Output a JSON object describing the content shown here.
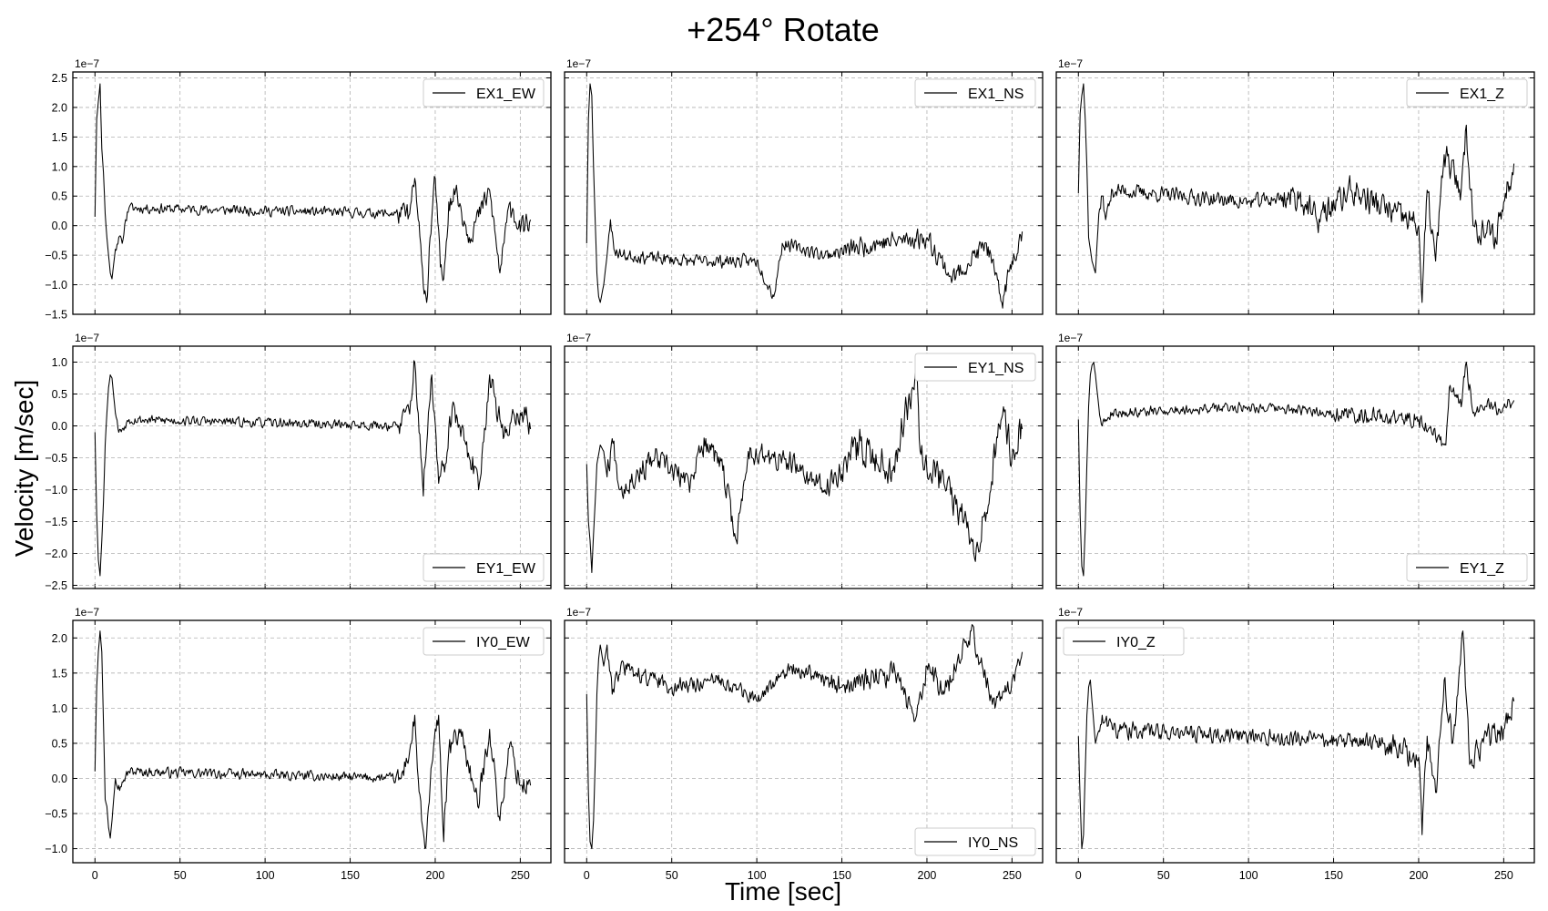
{
  "figure": {
    "title": "+254° Rotate",
    "xlabel": "Time [sec]",
    "ylabel": "Velocity [m/sec]",
    "offset_text": "1e−7",
    "colors": {
      "line": "#000000",
      "grid": "#b0b0b0",
      "background": "#ffffff"
    }
  },
  "chart_data": [
    {
      "type": "line",
      "title": "",
      "series": [
        {
          "name": "EX1_EW"
        }
      ],
      "legend": "upper-right",
      "xlim": [
        -13,
        268
      ],
      "ylim": [
        -1.5,
        2.6
      ],
      "xticks": [],
      "yticks": [
        -1.5,
        -1.0,
        -0.5,
        0.0,
        0.5,
        1.0,
        1.5,
        2.0,
        2.5
      ],
      "yticklabels": [
        "−1.5",
        "−1.0",
        "−0.5",
        "0.0",
        "0.5",
        "1.0",
        "1.5",
        "2.0",
        "2.5"
      ],
      "grid": true,
      "key_points": [
        [
          0,
          0.15
        ],
        [
          1,
          1.8
        ],
        [
          2,
          2.1
        ],
        [
          3,
          2.4
        ],
        [
          4,
          1.3
        ],
        [
          5,
          0.9
        ],
        [
          6,
          0.2
        ],
        [
          7,
          -0.2
        ],
        [
          8,
          -0.5
        ],
        [
          9,
          -0.8
        ],
        [
          10,
          -0.9
        ],
        [
          12,
          -0.4
        ],
        [
          14,
          -0.2
        ],
        [
          16,
          -0.3
        ],
        [
          18,
          0.1
        ],
        [
          20,
          0.3
        ],
        [
          185,
          0.2
        ],
        [
          188,
          0.8
        ],
        [
          190,
          0.1
        ],
        [
          192,
          -0.6
        ],
        [
          194,
          -1.1
        ],
        [
          195,
          -1.3
        ],
        [
          197,
          -0.2
        ],
        [
          200,
          0.8
        ],
        [
          203,
          -0.7
        ],
        [
          205,
          -0.9
        ],
        [
          208,
          0.4
        ],
        [
          212,
          0.6
        ],
        [
          220,
          -0.2
        ],
        [
          232,
          0.6
        ],
        [
          238,
          -0.8
        ],
        [
          244,
          0.4
        ],
        [
          250,
          -0.1
        ],
        [
          256,
          0.1
        ]
      ],
      "noise": {
        "level": 0.16,
        "late_level": 0.35,
        "late_start": 178,
        "seed": 11
      }
    },
    {
      "type": "line",
      "title": "",
      "series": [
        {
          "name": "EX1_NS"
        }
      ],
      "legend": "upper-right",
      "xlim": [
        -13,
        268
      ],
      "ylim": [
        -1.5,
        2.6
      ],
      "xticks": [],
      "yticks": [],
      "grid": true,
      "key_points": [
        [
          0,
          -0.3
        ],
        [
          1,
          1.8
        ],
        [
          2,
          2.4
        ],
        [
          3,
          2.2
        ],
        [
          4,
          1.0
        ],
        [
          5,
          0.1
        ],
        [
          6,
          -0.8
        ],
        [
          7,
          -1.2
        ],
        [
          8,
          -1.3
        ],
        [
          10,
          -1.0
        ],
        [
          12,
          -0.5
        ],
        [
          14,
          0.1
        ],
        [
          16,
          -0.4
        ],
        [
          20,
          -0.5
        ],
        [
          60,
          -0.6
        ],
        [
          100,
          -0.6
        ],
        [
          110,
          -1.2
        ],
        [
          115,
          -0.3
        ],
        [
          140,
          -0.5
        ],
        [
          170,
          -0.3
        ],
        [
          200,
          -0.2
        ],
        [
          215,
          -0.9
        ],
        [
          235,
          -0.3
        ],
        [
          244,
          -1.3
        ],
        [
          250,
          -0.6
        ],
        [
          256,
          -0.1
        ]
      ],
      "noise": {
        "level": 0.2,
        "late_level": 0.32,
        "late_start": 150,
        "seed": 23
      }
    },
    {
      "type": "line",
      "title": "",
      "series": [
        {
          "name": "EX1_Z"
        }
      ],
      "legend": "upper-right",
      "xlim": [
        -13,
        268
      ],
      "ylim": [
        -1.5,
        2.6
      ],
      "xticks": [],
      "yticks": [],
      "grid": true,
      "key_points": [
        [
          0,
          0.55
        ],
        [
          1,
          1.9
        ],
        [
          2,
          2.2
        ],
        [
          3,
          2.4
        ],
        [
          4,
          1.8
        ],
        [
          5,
          1.0
        ],
        [
          6,
          -0.2
        ],
        [
          8,
          -0.6
        ],
        [
          10,
          -0.8
        ],
        [
          12,
          0.2
        ],
        [
          14,
          0.5
        ],
        [
          16,
          0.1
        ],
        [
          20,
          0.6
        ],
        [
          100,
          0.4
        ],
        [
          130,
          0.5
        ],
        [
          140,
          0.1
        ],
        [
          160,
          0.6
        ],
        [
          200,
          0.0
        ],
        [
          202,
          -1.3
        ],
        [
          205,
          0.6
        ],
        [
          210,
          -0.6
        ],
        [
          215,
          1.2
        ],
        [
          225,
          0.6
        ],
        [
          228,
          1.7
        ],
        [
          232,
          0.0
        ],
        [
          245,
          -0.2
        ],
        [
          250,
          0.4
        ],
        [
          256,
          1.05
        ]
      ],
      "noise": {
        "level": 0.24,
        "late_level": 0.45,
        "late_start": 120,
        "seed": 37
      }
    },
    {
      "type": "line",
      "title": "",
      "series": [
        {
          "name": "EY1_EW"
        }
      ],
      "legend": "lower-right",
      "xlim": [
        -13,
        268
      ],
      "ylim": [
        -2.55,
        1.25
      ],
      "xticks": [],
      "yticks": [
        -2.5,
        -2.0,
        -1.5,
        -1.0,
        -0.5,
        0.0,
        0.5,
        1.0
      ],
      "yticklabels": [
        "−2.5",
        "−2.0",
        "−1.5",
        "−1.0",
        "−0.5",
        "0.0",
        "0.5",
        "1.0"
      ],
      "grid": true,
      "key_points": [
        [
          0,
          -0.1
        ],
        [
          1,
          -1.4
        ],
        [
          2,
          -2.1
        ],
        [
          3,
          -2.35
        ],
        [
          4,
          -1.8
        ],
        [
          5,
          -1.2
        ],
        [
          6,
          -0.3
        ],
        [
          7,
          0.2
        ],
        [
          8,
          0.6
        ],
        [
          9,
          0.8
        ],
        [
          10,
          0.75
        ],
        [
          12,
          0.2
        ],
        [
          14,
          -0.1
        ],
        [
          16,
          -0.05
        ],
        [
          20,
          0.1
        ],
        [
          180,
          0.0
        ],
        [
          186,
          0.4
        ],
        [
          188,
          1.0
        ],
        [
          190,
          0.2
        ],
        [
          192,
          -0.6
        ],
        [
          193,
          -1.1
        ],
        [
          195,
          -0.3
        ],
        [
          198,
          0.8
        ],
        [
          202,
          -0.9
        ],
        [
          206,
          -0.6
        ],
        [
          210,
          0.3
        ],
        [
          220,
          -0.5
        ],
        [
          226,
          -0.9
        ],
        [
          232,
          0.8
        ],
        [
          240,
          -0.2
        ],
        [
          246,
          0.2
        ],
        [
          254,
          0.15
        ],
        [
          256,
          -0.05
        ]
      ],
      "noise": {
        "level": 0.14,
        "late_level": 0.38,
        "late_start": 178,
        "seed": 53
      }
    },
    {
      "type": "line",
      "title": "",
      "series": [
        {
          "name": "EY1_NS"
        }
      ],
      "legend": "upper-right",
      "xlim": [
        -13,
        268
      ],
      "ylim": [
        -2.55,
        1.25
      ],
      "xticks": [],
      "yticks": [],
      "grid": true,
      "key_points": [
        [
          0,
          -0.6
        ],
        [
          1,
          -1.5
        ],
        [
          2,
          -1.8
        ],
        [
          3,
          -2.3
        ],
        [
          4,
          -1.7
        ],
        [
          5,
          -1.2
        ],
        [
          6,
          -0.6
        ],
        [
          8,
          -0.3
        ],
        [
          10,
          -0.4
        ],
        [
          12,
          -0.8
        ],
        [
          15,
          -0.2
        ],
        [
          20,
          -1.0
        ],
        [
          40,
          -0.5
        ],
        [
          60,
          -0.9
        ],
        [
          70,
          -0.2
        ],
        [
          80,
          -0.7
        ],
        [
          88,
          -1.8
        ],
        [
          95,
          -0.4
        ],
        [
          120,
          -0.6
        ],
        [
          140,
          -1.0
        ],
        [
          160,
          -0.3
        ],
        [
          180,
          -0.7
        ],
        [
          194,
          1.0
        ],
        [
          196,
          -0.4
        ],
        [
          210,
          -0.9
        ],
        [
          230,
          -1.9
        ],
        [
          240,
          -0.5
        ],
        [
          245,
          0.3
        ],
        [
          250,
          -0.5
        ],
        [
          256,
          -0.05
        ]
      ],
      "noise": {
        "level": 0.35,
        "late_level": 0.5,
        "late_start": 150,
        "seed": 67
      }
    },
    {
      "type": "line",
      "title": "",
      "series": [
        {
          "name": "EY1_Z"
        }
      ],
      "legend": "lower-right",
      "xlim": [
        -13,
        268
      ],
      "ylim": [
        -2.55,
        1.25
      ],
      "xticks": [],
      "yticks": [],
      "grid": true,
      "key_points": [
        [
          0,
          0.1
        ],
        [
          1,
          -1.4
        ],
        [
          2,
          -2.2
        ],
        [
          3,
          -2.35
        ],
        [
          4,
          -1.6
        ],
        [
          5,
          -0.6
        ],
        [
          6,
          0.3
        ],
        [
          7,
          0.8
        ],
        [
          8,
          0.95
        ],
        [
          9,
          1.0
        ],
        [
          10,
          0.8
        ],
        [
          12,
          0.3
        ],
        [
          14,
          0.0
        ],
        [
          16,
          0.1
        ],
        [
          20,
          0.2
        ],
        [
          100,
          0.3
        ],
        [
          200,
          0.1
        ],
        [
          216,
          -0.3
        ],
        [
          218,
          0.6
        ],
        [
          225,
          0.3
        ],
        [
          228,
          1.0
        ],
        [
          232,
          0.2
        ],
        [
          240,
          0.3
        ],
        [
          250,
          0.3
        ],
        [
          256,
          0.4
        ]
      ],
      "noise": {
        "level": 0.15,
        "late_level": 0.24,
        "late_start": 150,
        "seed": 79
      }
    },
    {
      "type": "line",
      "title": "",
      "series": [
        {
          "name": "IY0_EW"
        }
      ],
      "legend": "upper-right",
      "xlim": [
        -13,
        268
      ],
      "ylim": [
        -1.2,
        2.25
      ],
      "xticks": [
        0,
        50,
        100,
        150,
        200,
        250
      ],
      "yticks": [
        -1.0,
        -0.5,
        0.0,
        0.5,
        1.0,
        1.5,
        2.0
      ],
      "yticklabels": [
        "−1.0",
        "−0.5",
        "0.0",
        "0.5",
        "1.0",
        "1.5",
        "2.0"
      ],
      "grid": true,
      "key_points": [
        [
          0,
          0.1
        ],
        [
          1,
          1.3
        ],
        [
          2,
          1.8
        ],
        [
          3,
          2.1
        ],
        [
          4,
          1.8
        ],
        [
          5,
          0.8
        ],
        [
          6,
          -0.3
        ],
        [
          7,
          -0.4
        ],
        [
          8,
          -0.7
        ],
        [
          9,
          -0.85
        ],
        [
          10,
          -0.6
        ],
        [
          12,
          0.0
        ],
        [
          14,
          -0.1
        ],
        [
          16,
          -0.05
        ],
        [
          20,
          0.1
        ],
        [
          180,
          0.0
        ],
        [
          186,
          0.5
        ],
        [
          188,
          0.9
        ],
        [
          190,
          0.0
        ],
        [
          192,
          -0.6
        ],
        [
          194,
          -1.0
        ],
        [
          195,
          -0.8
        ],
        [
          198,
          0.2
        ],
        [
          202,
          0.9
        ],
        [
          205,
          -0.9
        ],
        [
          208,
          0.4
        ],
        [
          215,
          0.7
        ],
        [
          225,
          -0.4
        ],
        [
          232,
          0.7
        ],
        [
          238,
          -0.6
        ],
        [
          244,
          0.5
        ],
        [
          250,
          -0.1
        ],
        [
          256,
          -0.1
        ]
      ],
      "noise": {
        "level": 0.13,
        "late_level": 0.3,
        "late_start": 178,
        "seed": 97
      }
    },
    {
      "type": "line",
      "title": "",
      "series": [
        {
          "name": "IY0_NS"
        }
      ],
      "legend": "lower-right",
      "xlim": [
        -13,
        268
      ],
      "ylim": [
        -1.2,
        2.25
      ],
      "xticks": [
        0,
        50,
        100,
        150,
        200,
        250
      ],
      "yticks": [],
      "grid": true,
      "key_points": [
        [
          0,
          1.2
        ],
        [
          1,
          -0.2
        ],
        [
          2,
          -0.9
        ],
        [
          3,
          -1.0
        ],
        [
          4,
          -0.6
        ],
        [
          5,
          0.2
        ],
        [
          6,
          1.2
        ],
        [
          7,
          1.7
        ],
        [
          8,
          1.9
        ],
        [
          10,
          1.6
        ],
        [
          12,
          1.9
        ],
        [
          15,
          1.2
        ],
        [
          20,
          1.6
        ],
        [
          50,
          1.3
        ],
        [
          80,
          1.4
        ],
        [
          100,
          1.1
        ],
        [
          120,
          1.6
        ],
        [
          150,
          1.3
        ],
        [
          180,
          1.5
        ],
        [
          194,
          0.9
        ],
        [
          200,
          1.6
        ],
        [
          210,
          1.2
        ],
        [
          226,
          2.1
        ],
        [
          240,
          1.0
        ],
        [
          250,
          1.4
        ],
        [
          256,
          1.8
        ]
      ],
      "noise": {
        "level": 0.22,
        "late_level": 0.3,
        "late_start": 140,
        "seed": 113
      }
    },
    {
      "type": "line",
      "title": "",
      "series": [
        {
          "name": "IY0_Z"
        }
      ],
      "legend": "upper-left",
      "xlim": [
        -13,
        268
      ],
      "ylim": [
        -1.2,
        2.25
      ],
      "xticks": [
        0,
        50,
        100,
        150,
        200,
        250
      ],
      "yticks": [],
      "grid": true,
      "key_points": [
        [
          0,
          0.6
        ],
        [
          1,
          -0.3
        ],
        [
          2,
          -1.0
        ],
        [
          3,
          -0.8
        ],
        [
          4,
          0.1
        ],
        [
          5,
          0.9
        ],
        [
          6,
          1.3
        ],
        [
          7,
          1.4
        ],
        [
          8,
          1.1
        ],
        [
          10,
          0.5
        ],
        [
          14,
          0.9
        ],
        [
          20,
          0.7
        ],
        [
          100,
          0.6
        ],
        [
          180,
          0.5
        ],
        [
          200,
          0.3
        ],
        [
          202,
          -0.8
        ],
        [
          205,
          0.6
        ],
        [
          210,
          -0.2
        ],
        [
          215,
          1.4
        ],
        [
          220,
          0.5
        ],
        [
          226,
          2.1
        ],
        [
          230,
          0.2
        ],
        [
          240,
          0.6
        ],
        [
          250,
          0.7
        ],
        [
          256,
          1.1
        ]
      ],
      "noise": {
        "level": 0.22,
        "late_level": 0.34,
        "late_start": 180,
        "seed": 131
      }
    }
  ]
}
